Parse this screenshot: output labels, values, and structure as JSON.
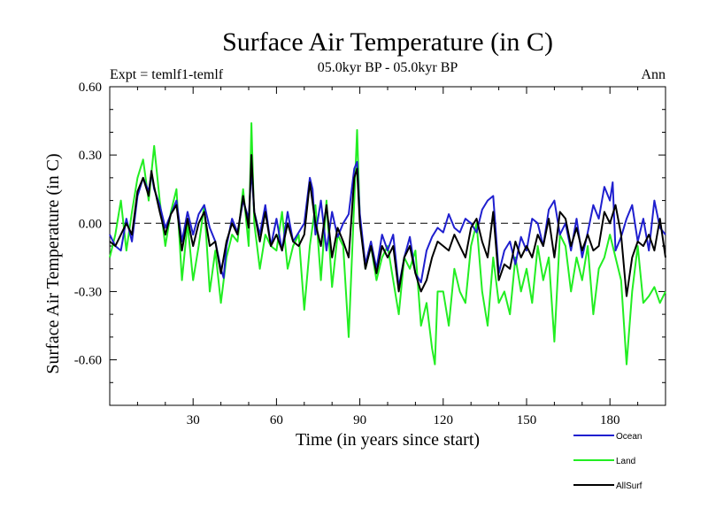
{
  "chart_data": {
    "type": "line",
    "title": "Surface Air Temperature (in C)",
    "subtitle": "05.0kyr BP - 05.0kyr BP",
    "left_label": "Expt = temlf1-temlf",
    "right_label": "Ann",
    "xlabel": "Time (in years since start)",
    "ylabel": "Surface Air Temperature (in C)",
    "xlim": [
      0,
      200
    ],
    "ylim": [
      -0.8,
      0.6
    ],
    "x_ticks": [
      30,
      60,
      90,
      120,
      150,
      180
    ],
    "x_tick_labels": [
      "30",
      "60",
      "90",
      "120",
      "150",
      "180"
    ],
    "y_ticks": [
      0.6,
      0.3,
      0.0,
      -0.3,
      -0.6
    ],
    "y_tick_labels": [
      "0.60",
      "0.30",
      "0.00",
      "-0.30",
      "-0.60"
    ],
    "zero_line": "dashed",
    "legend_position": "bottom-right",
    "colors": {
      "Ocean": "#1f1fcf",
      "Land": "#22ee22",
      "AllSurf": "#000000"
    },
    "series": [
      {
        "name": "Ocean",
        "x": [
          0,
          2,
          4,
          6,
          8,
          10,
          12,
          14,
          15,
          16,
          18,
          20,
          22,
          24,
          26,
          28,
          30,
          32,
          34,
          36,
          38,
          40,
          41,
          42,
          44,
          46,
          48,
          50,
          51,
          52,
          54,
          56,
          58,
          60,
          62,
          64,
          66,
          68,
          70,
          72,
          73,
          74,
          76,
          78,
          80,
          82,
          84,
          86,
          88,
          89,
          90,
          92,
          94,
          96,
          98,
          100,
          102,
          104,
          106,
          108,
          110,
          112,
          114,
          116,
          118,
          120,
          122,
          124,
          126,
          128,
          130,
          132,
          134,
          136,
          138,
          140,
          142,
          144,
          146,
          148,
          150,
          152,
          154,
          156,
          158,
          160,
          162,
          164,
          166,
          168,
          170,
          172,
          174,
          176,
          178,
          180,
          181,
          182,
          184,
          186,
          188,
          190,
          192,
          194,
          196,
          198,
          200
        ],
        "y": [
          -0.05,
          -0.1,
          -0.12,
          0.02,
          -0.08,
          0.12,
          0.2,
          0.14,
          0.22,
          0.15,
          0.08,
          -0.02,
          0.04,
          0.1,
          -0.08,
          0.05,
          -0.05,
          0.04,
          0.08,
          -0.02,
          -0.08,
          -0.2,
          -0.24,
          -0.1,
          0.02,
          -0.04,
          0.1,
          0.02,
          0.24,
          0.05,
          -0.05,
          0.08,
          -0.1,
          0.02,
          -0.12,
          0.05,
          -0.08,
          -0.04,
          0.0,
          0.2,
          0.15,
          -0.05,
          0.1,
          -0.12,
          0.05,
          -0.06,
          0.0,
          0.04,
          0.24,
          0.27,
          0.04,
          -0.18,
          -0.08,
          -0.2,
          -0.05,
          -0.12,
          -0.05,
          -0.28,
          -0.15,
          -0.06,
          -0.22,
          -0.26,
          -0.12,
          -0.06,
          -0.02,
          -0.04,
          0.04,
          -0.02,
          -0.04,
          0.02,
          0.0,
          -0.04,
          0.06,
          0.1,
          0.12,
          -0.22,
          -0.12,
          -0.08,
          -0.18,
          -0.06,
          -0.12,
          0.02,
          0.0,
          -0.1,
          0.06,
          0.1,
          -0.05,
          0.0,
          -0.12,
          0.02,
          -0.15,
          -0.04,
          0.08,
          0.02,
          0.16,
          0.1,
          0.18,
          -0.12,
          -0.06,
          0.02,
          0.08,
          -0.08,
          0.02,
          -0.12,
          0.1,
          -0.02,
          -0.05
        ]
      },
      {
        "name": "Land",
        "x": [
          0,
          2,
          4,
          6,
          8,
          10,
          12,
          14,
          16,
          18,
          20,
          22,
          24,
          26,
          28,
          30,
          32,
          34,
          36,
          38,
          40,
          42,
          44,
          46,
          48,
          50,
          51,
          52,
          54,
          56,
          58,
          60,
          62,
          64,
          66,
          68,
          70,
          72,
          74,
          76,
          78,
          80,
          82,
          84,
          86,
          88,
          89,
          90,
          92,
          94,
          96,
          98,
          100,
          102,
          104,
          106,
          108,
          110,
          112,
          114,
          116,
          117,
          118,
          120,
          122,
          124,
          126,
          128,
          130,
          132,
          134,
          136,
          138,
          140,
          142,
          144,
          146,
          148,
          150,
          152,
          154,
          156,
          158,
          160,
          162,
          164,
          166,
          168,
          170,
          172,
          174,
          176,
          178,
          180,
          182,
          184,
          186,
          188,
          190,
          192,
          194,
          196,
          198,
          200
        ],
        "y": [
          -0.15,
          -0.05,
          0.1,
          -0.12,
          0.05,
          0.2,
          0.28,
          0.1,
          0.34,
          0.1,
          -0.1,
          0.05,
          0.15,
          -0.25,
          0.0,
          -0.25,
          -0.1,
          0.08,
          -0.3,
          -0.12,
          -0.35,
          -0.15,
          -0.05,
          -0.08,
          0.15,
          -0.1,
          0.44,
          0.0,
          -0.2,
          -0.05,
          -0.1,
          -0.12,
          0.05,
          -0.2,
          -0.1,
          -0.05,
          -0.38,
          -0.1,
          0.08,
          -0.25,
          0.1,
          -0.28,
          -0.05,
          -0.1,
          -0.5,
          0.1,
          0.41,
          0.02,
          -0.2,
          -0.1,
          -0.25,
          -0.15,
          -0.1,
          -0.25,
          -0.4,
          -0.15,
          -0.2,
          -0.12,
          -0.45,
          -0.35,
          -0.55,
          -0.62,
          -0.3,
          -0.3,
          -0.45,
          -0.2,
          -0.3,
          -0.35,
          -0.1,
          0.0,
          -0.3,
          -0.45,
          -0.15,
          -0.35,
          -0.3,
          -0.4,
          -0.15,
          -0.3,
          -0.2,
          -0.35,
          -0.1,
          -0.25,
          -0.15,
          -0.52,
          -0.05,
          -0.1,
          -0.3,
          -0.15,
          -0.25,
          -0.1,
          -0.4,
          -0.2,
          -0.15,
          -0.05,
          -0.15,
          -0.25,
          -0.62,
          -0.3,
          -0.1,
          -0.35,
          -0.32,
          -0.28,
          -0.35,
          -0.3
        ]
      },
      {
        "name": "AllSurf",
        "x": [
          0,
          2,
          4,
          6,
          8,
          10,
          12,
          14,
          15,
          16,
          18,
          20,
          22,
          24,
          26,
          28,
          30,
          32,
          34,
          36,
          38,
          40,
          42,
          44,
          46,
          48,
          50,
          51,
          52,
          54,
          56,
          58,
          60,
          62,
          64,
          66,
          68,
          70,
          72,
          74,
          76,
          78,
          80,
          82,
          84,
          86,
          88,
          89,
          90,
          92,
          94,
          96,
          98,
          100,
          102,
          104,
          106,
          108,
          110,
          112,
          114,
          116,
          118,
          120,
          122,
          124,
          126,
          128,
          130,
          132,
          134,
          136,
          138,
          140,
          142,
          144,
          146,
          148,
          150,
          152,
          154,
          156,
          158,
          160,
          162,
          164,
          166,
          168,
          170,
          172,
          174,
          176,
          178,
          180,
          182,
          184,
          186,
          188,
          190,
          192,
          194,
          196,
          198,
          200
        ],
        "y": [
          -0.08,
          -0.1,
          -0.05,
          0.0,
          -0.05,
          0.14,
          0.2,
          0.12,
          0.23,
          0.16,
          0.05,
          -0.05,
          0.04,
          0.08,
          -0.12,
          0.02,
          -0.1,
          0.0,
          0.05,
          -0.1,
          -0.08,
          -0.22,
          -0.08,
          0.0,
          -0.05,
          0.12,
          -0.02,
          0.3,
          0.05,
          -0.08,
          0.05,
          -0.1,
          -0.05,
          -0.12,
          0.0,
          -0.08,
          -0.1,
          -0.05,
          0.18,
          0.0,
          -0.1,
          0.08,
          -0.15,
          -0.02,
          -0.08,
          -0.15,
          0.2,
          0.24,
          0.0,
          -0.2,
          -0.1,
          -0.22,
          -0.1,
          -0.15,
          -0.1,
          -0.3,
          -0.15,
          -0.1,
          -0.22,
          -0.3,
          -0.25,
          -0.15,
          -0.08,
          -0.1,
          -0.12,
          -0.05,
          -0.1,
          -0.15,
          -0.02,
          0.02,
          -0.08,
          -0.15,
          0.05,
          -0.25,
          -0.18,
          -0.2,
          -0.08,
          -0.15,
          -0.1,
          -0.15,
          -0.05,
          -0.1,
          0.02,
          -0.15,
          0.05,
          0.02,
          -0.1,
          -0.02,
          -0.12,
          -0.05,
          -0.12,
          -0.1,
          0.05,
          0.0,
          0.08,
          -0.05,
          -0.32,
          -0.15,
          -0.08,
          -0.1,
          -0.05,
          -0.12,
          0.02,
          -0.15
        ]
      }
    ]
  }
}
